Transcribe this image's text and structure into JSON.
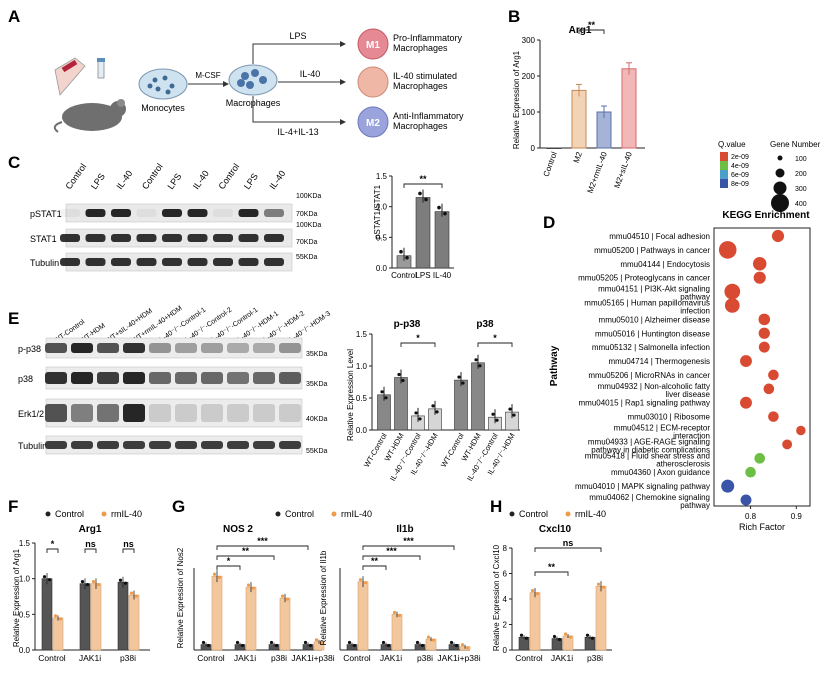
{
  "figure": {
    "panels": {
      "A": {
        "letter": "A",
        "cells": {
          "monocytes": "Monocytes",
          "macrophages": "Macrophages",
          "mcsf": "M-CSF"
        },
        "treatments": {
          "lps": "LPS",
          "il40": "IL-40",
          "il4il13": "IL-4+IL-13"
        },
        "outcomes": [
          {
            "badge": "M1",
            "line1": "Pro-Inflammatory",
            "line2": "Macrophages",
            "color": "#e58a94"
          },
          {
            "badge": "",
            "line1": "IL-40 stimulated",
            "line2": "Macrophages",
            "color": "#efb7a6"
          },
          {
            "badge": "M2",
            "line1": "Anti-Inflammatory",
            "line2": "Macrophages",
            "color": "#9aa3dc"
          }
        ]
      },
      "B": {
        "letter": "B",
        "title": "Arg1",
        "ylabel": "Relative Expression of Arg1",
        "sig": "**"
      },
      "C": {
        "letter": "C",
        "blot_lanes": [
          "Control",
          "LPS",
          "IL-40",
          "Control",
          "LPS",
          "IL-40",
          "Control",
          "LPS",
          "IL-40"
        ],
        "rows": [
          "pSTAT1",
          "STAT1",
          "Tubulin"
        ],
        "mw": [
          "100KDa",
          "70KDa",
          "100KDa",
          "70KDa",
          "55KDa"
        ],
        "ylabel": "pSTAT1/STAT1",
        "sig": "**"
      },
      "D": {
        "letter": "D",
        "title": "KEGG Enrichment",
        "ylabel": "Pathway",
        "xlabel": "Rich Factor",
        "legend_q_title": "Q.value",
        "legend_q": [
          "2e-09",
          "4e-09",
          "6e-09",
          "8e-09"
        ],
        "legend_size_title": "Gene Number",
        "legend_size": [
          "100",
          "200",
          "300",
          "400"
        ]
      },
      "E": {
        "letter": "E",
        "blot_lanes": [
          "WT-Control",
          "WT-HDM",
          "WT+sIL-40+HDM",
          "WT+rmIL-40+HDM",
          "IL-40⁻/⁻-Control-1",
          "IL-40⁻/⁻-Control-2",
          "IL-40⁻/⁻-Control-1",
          "IL-40⁻/⁻-HDM-1",
          "IL-40⁻/⁻-HDM-2",
          "IL-40⁻/⁻-HDM-3"
        ],
        "rows": [
          "p-p38",
          "p38",
          "Erk1/2",
          "Tubulin"
        ],
        "mw": [
          "35KDa",
          "35KDa",
          "40KDa",
          "55KDa"
        ],
        "ylabel": "Relative Expression Level",
        "group1": "p-p38",
        "group2": "p38",
        "sig": "*"
      },
      "F": {
        "letter": "F",
        "title": "Arg1",
        "ylabel": "Relative Expression of Arg1",
        "sigs": [
          "*",
          "ns",
          "ns"
        ]
      },
      "G": {
        "letter": "G",
        "title1": "NOS 2",
        "ylabel1": "Relative Expression of Nos2",
        "title2": "Il1b",
        "ylabel2": "Relative Expression of Il1b"
      },
      "H": {
        "letter": "H",
        "title": "Cxcl10",
        "ylabel": "Relative Expression of Cxcl10",
        "sigs": [
          "**",
          "ns"
        ]
      }
    },
    "legend": {
      "control": "Control",
      "treat": "rmIL-40"
    },
    "colors": {
      "control": "#555555",
      "treat": "#f2c79e",
      "treat_dot": "#f09a4a",
      "m2": "#f2d3b5",
      "m2il40": "#a4b3d6",
      "m2sil40": "#f2b8b8",
      "lps_bar": "#7d7d7d",
      "il40_bar": "#7d7d7d"
    }
  },
  "chart_data": [
    {
      "panel": "B",
      "type": "bar",
      "title": "Arg1",
      "ylabel": "Relative Expression of Arg1",
      "categories": [
        "Control",
        "M2",
        "M2+rmIL-40",
        "M2+sIL-40"
      ],
      "values": [
        0,
        160,
        100,
        220
      ],
      "ylim": [
        0,
        300
      ],
      "yticks": [
        0,
        100,
        200,
        300
      ]
    },
    {
      "panel": "C",
      "type": "bar",
      "ylabel": "pSTAT1/STAT1",
      "categories": [
        "Control",
        "LPS",
        "IL-40"
      ],
      "values": [
        0.2,
        1.15,
        0.92
      ],
      "ylim": [
        0,
        1.5
      ],
      "yticks": [
        0.0,
        0.5,
        1.0,
        1.5
      ]
    },
    {
      "panel": "D",
      "type": "scatter",
      "title": "KEGG Enrichment",
      "xlabel": "Rich Factor",
      "ylabel": "Pathway",
      "xticks": [
        0.8,
        0.9
      ],
      "xlim": [
        0.72,
        0.93
      ],
      "points": [
        {
          "label": "mmu04510 | Focal adhesion",
          "x": 0.86,
          "q": "2e-09",
          "n": 150
        },
        {
          "label": "mmu05200 | Pathways in cancer",
          "x": 0.75,
          "q": "2e-09",
          "n": 400
        },
        {
          "label": "mmu04144 | Endocytosis",
          "x": 0.82,
          "q": "2e-09",
          "n": 200
        },
        {
          "label": "mmu05205 | Proteoglycans in cancer",
          "x": 0.82,
          "q": "2e-09",
          "n": 150
        },
        {
          "label": "mmu04151 | PI3K-Akt signaling pathway",
          "x": 0.76,
          "q": "2e-09",
          "n": 300
        },
        {
          "label": "mmu05165 | Human papillomavirus infection",
          "x": 0.76,
          "q": "2e-09",
          "n": 250
        },
        {
          "label": "mmu05010 | Alzheimer disease",
          "x": 0.83,
          "q": "2e-09",
          "n": 130
        },
        {
          "label": "mmu05016 | Huntington disease",
          "x": 0.83,
          "q": "2e-09",
          "n": 120
        },
        {
          "label": "mmu05132 | Salmonella infection",
          "x": 0.83,
          "q": "2e-09",
          "n": 110
        },
        {
          "label": "mmu04714 | Thermogenesis",
          "x": 0.79,
          "q": "2e-09",
          "n": 140
        },
        {
          "label": "mmu05206 | MicroRNAs in cancer",
          "x": 0.85,
          "q": "2e-09",
          "n": 100
        },
        {
          "label": "mmu04932 | Non-alcoholic fatty liver disease",
          "x": 0.84,
          "q": "2e-09",
          "n": 100
        },
        {
          "label": "mmu04015 | Rap1 signaling pathway",
          "x": 0.79,
          "q": "2e-09",
          "n": 140
        },
        {
          "label": "mmu03010 | Ribosome",
          "x": 0.85,
          "q": "2e-09",
          "n": 100
        },
        {
          "label": "mmu04512 | ECM-receptor interaction",
          "x": 0.91,
          "q": "2e-09",
          "n": 70
        },
        {
          "label": "mmu04933 | AGE-RAGE signaling pathway in diabetic complications",
          "x": 0.88,
          "q": "2e-09",
          "n": 80
        },
        {
          "label": "mmu05418 | Fluid shear stress and atherosclerosis",
          "x": 0.82,
          "q": "4e-09",
          "n": 100
        },
        {
          "label": "mmu04360 | Axon guidance",
          "x": 0.8,
          "q": "6e-09",
          "n": 100
        },
        {
          "label": "mmu04010 | MAPK signaling pathway",
          "x": 0.75,
          "q": "8e-09",
          "n": 180
        },
        {
          "label": "mmu04062 | Chemokine signaling pathway",
          "x": 0.79,
          "q": "8e-09",
          "n": 110
        }
      ]
    },
    {
      "panel": "E",
      "type": "bar",
      "ylabel": "Relative Expression Level",
      "categories": [
        "WT-Control",
        "WT-HDM",
        "IL-40⁻/⁻-Control",
        "IL-40⁻/⁻-HDM"
      ],
      "series": [
        {
          "name": "p-p38",
          "values": [
            0.55,
            0.82,
            0.22,
            0.33
          ]
        },
        {
          "name": "p38",
          "values": [
            0.78,
            1.05,
            0.2,
            0.28
          ]
        }
      ],
      "ylim": [
        0,
        1.5
      ],
      "yticks": [
        0.0,
        0.5,
        1.0,
        1.5
      ]
    },
    {
      "panel": "F",
      "type": "bar",
      "title": "Arg1",
      "ylabel": "Relative Expression of Arg1",
      "categories": [
        "Control",
        "JAK1i",
        "p38i"
      ],
      "series": [
        {
          "name": "Control",
          "values": [
            1.0,
            0.93,
            0.95
          ]
        },
        {
          "name": "rmIL-40",
          "values": [
            0.45,
            0.93,
            0.77
          ]
        }
      ],
      "ylim": [
        0,
        1.5
      ],
      "yticks": [
        0.0,
        0.5,
        1.0,
        1.5
      ]
    },
    {
      "panel": "G",
      "type": "bar",
      "title": "NOS 2",
      "ylabel": "Relative Expression of Nos2",
      "categories": [
        "Control",
        "JAK1i",
        "p38i",
        "JAK1i+p38i"
      ],
      "series": [
        {
          "name": "Control",
          "values": [
            1,
            1,
            1,
            1
          ]
        },
        {
          "name": "rmIL-40",
          "values": [
            13.5,
            11.5,
            9.5,
            1.5
          ]
        }
      ]
    },
    {
      "panel": "G",
      "type": "bar",
      "title": "Il1b",
      "ylabel": "Relative Expression of Il1b",
      "categories": [
        "Control",
        "JAK1i",
        "p38i",
        "JAK1i+p38i"
      ],
      "series": [
        {
          "name": "Control",
          "values": [
            1,
            1,
            1,
            1
          ]
        },
        {
          "name": "rmIL-40",
          "values": [
            12.5,
            6.5,
            2.0,
            0.6
          ]
        }
      ]
    },
    {
      "panel": "H",
      "type": "bar",
      "title": "Cxcl10",
      "ylabel": "Relative Expression of Cxcl10",
      "categories": [
        "Control",
        "JAK1i",
        "p38i"
      ],
      "series": [
        {
          "name": "Control",
          "values": [
            1.0,
            0.9,
            1.0
          ]
        },
        {
          "name": "rmIL-40",
          "values": [
            4.5,
            1.1,
            5.0
          ]
        }
      ],
      "ylim": [
        0,
        8
      ],
      "yticks": [
        0,
        2,
        4,
        6,
        8
      ]
    }
  ]
}
